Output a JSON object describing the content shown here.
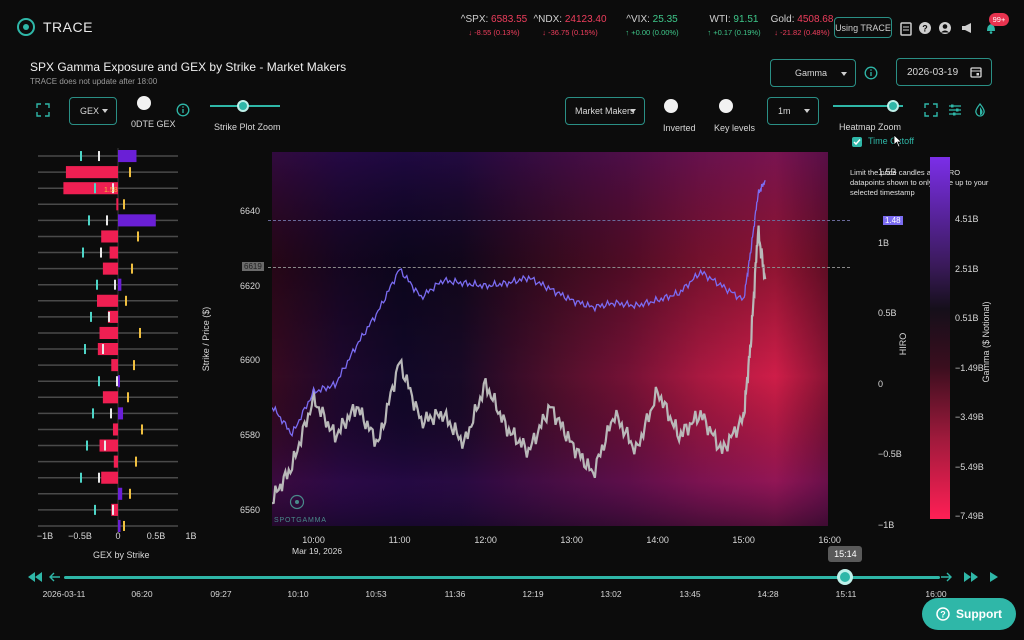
{
  "app": {
    "name": "TRACE"
  },
  "tickers": [
    {
      "name": "^SPX:",
      "value": "6583.55",
      "change": "-8.55 (0.13%)",
      "dir": "down"
    },
    {
      "name": "^NDX:",
      "value": "24123.40",
      "change": "-36.75 (0.15%)",
      "dir": "down"
    },
    {
      "name": "^VIX:",
      "value": "25.35",
      "change": "+0.00 (0.00%)",
      "dir": "up"
    },
    {
      "name": "WTI:",
      "value": "91.51",
      "change": "+0.17 (0.19%)",
      "dir": "up"
    },
    {
      "name": "Gold:",
      "value": "4508.68",
      "change": "-21.82 (0.48%)",
      "dir": "down"
    }
  ],
  "header": {
    "using_trace": "Using TRACE",
    "notif_badge": "99+"
  },
  "page": {
    "title": "SPX Gamma Exposure and GEX by Strike - Market Makers",
    "subtitle": "TRACE does not update after 18:00"
  },
  "controls": {
    "gamma_select": "Gamma",
    "date": "2026-03-19",
    "gex_select": "GEX",
    "odte_label": "0DTE GEX",
    "strike_zoom_label": "Strike Plot Zoom",
    "mm_select": "Market Makers",
    "inverted_label": "Inverted",
    "key_levels_label": "Key levels",
    "interval_select": "1m",
    "heatmap_zoom_label": "Heatmap Zoom",
    "time_cutoff_label": "Time Cutoff",
    "time_cutoff_tooltip": "Limit the price candles and HIRO datapoints shown to only those up to your selected timestamp"
  },
  "colors": {
    "accent": "#2fb7a8",
    "negative": "#ef1f52",
    "positive": "#6a1fd6",
    "hiro": "#7b6cf2"
  },
  "gex_by_strike": {
    "title": "GEX by Strike",
    "x_ticks": [
      "−1B",
      "−0.5B",
      "0",
      "0.5B",
      "1B"
    ],
    "annotation": "1.58",
    "bars": [
      {
        "v": 0.22
      },
      {
        "v": -0.62
      },
      {
        "v": -0.65
      },
      {
        "v": -0.02
      },
      {
        "v": 0.45
      },
      {
        "v": -0.2
      },
      {
        "v": -0.1
      },
      {
        "v": -0.18
      },
      {
        "v": 0.04
      },
      {
        "v": -0.25
      },
      {
        "v": -0.12
      },
      {
        "v": -0.22
      },
      {
        "v": -0.24
      },
      {
        "v": -0.08
      },
      {
        "v": 0.02
      },
      {
        "v": -0.18
      },
      {
        "v": 0.06
      },
      {
        "v": -0.06
      },
      {
        "v": -0.22
      },
      {
        "v": -0.05
      },
      {
        "v": -0.2
      },
      {
        "v": 0.05
      },
      {
        "v": -0.08
      },
      {
        "v": 0.03
      }
    ]
  },
  "chart_data": {
    "type": "heatmap",
    "title": "SPX Gamma Exposure and GEX by Strike - Market Makers",
    "xlabel": "",
    "ylabel": "Strike / Price ($)",
    "y2label": "HIRO",
    "colorbar_label": "Gamma ($ Notional)",
    "x_ticks": [
      "10:00",
      "11:00",
      "12:00",
      "13:00",
      "14:00",
      "15:00",
      "16:00"
    ],
    "x_date_label": "Mar 19, 2026",
    "y_ticks": [
      6560,
      6580,
      6600,
      6620,
      6640
    ],
    "y_range": [
      6556,
      6656
    ],
    "hiro_ticks": [
      "−1B",
      "−0.5B",
      "0",
      "0.5B",
      "1B",
      "1.5B"
    ],
    "colorbar_ticks": [
      "4.51B",
      "2.51B",
      "0.51B",
      "−1.49B",
      "−3.49B",
      "−5.49B",
      "−7.49B"
    ],
    "price_marker": "6619",
    "hiro_marker": "1.48",
    "price_series": {
      "name": "",
      "x": [
        "09:31",
        "09:45",
        "10:00",
        "10:15",
        "10:30",
        "10:45",
        "11:00",
        "11:15",
        "11:30",
        "11:45",
        "12:00",
        "12:15",
        "12:30",
        "12:45",
        "13:00",
        "13:15",
        "13:30",
        "13:45",
        "14:00",
        "14:15",
        "14:30",
        "14:45",
        "15:00",
        "15:05",
        "15:10",
        "15:15"
      ],
      "y": [
        6563,
        6572,
        6590,
        6580,
        6588,
        6578,
        6600,
        6584,
        6586,
        6578,
        6594,
        6582,
        6576,
        6588,
        6578,
        6570,
        6586,
        6576,
        6592,
        6580,
        6586,
        6576,
        6585,
        6605,
        6635,
        6622
      ]
    },
    "hiro_series": {
      "name": "",
      "x": [
        "09:31",
        "09:45",
        "10:00",
        "10:15",
        "10:30",
        "10:45",
        "11:00",
        "11:15",
        "11:30",
        "11:45",
        "12:00",
        "12:15",
        "12:30",
        "12:45",
        "13:00",
        "13:15",
        "13:30",
        "13:45",
        "14:00",
        "14:15",
        "14:30",
        "14:45",
        "15:00",
        "15:05",
        "15:10",
        "15:15"
      ],
      "y": [
        -0.15,
        -0.35,
        -0.05,
        0.0,
        0.28,
        0.52,
        0.82,
        0.62,
        0.74,
        0.72,
        0.7,
        0.72,
        0.76,
        0.68,
        0.6,
        0.55,
        0.58,
        0.56,
        0.6,
        0.65,
        0.8,
        0.7,
        0.6,
        0.95,
        1.35,
        1.45
      ]
    }
  },
  "timeline": {
    "current": "15:14",
    "labels": [
      "2026-03-11",
      "06:20",
      "09:27",
      "10:10",
      "10:53",
      "11:36",
      "12:19",
      "13:02",
      "13:45",
      "14:28",
      "15:11",
      "16:00"
    ],
    "position": 0.892
  },
  "support": {
    "label": "Support"
  }
}
